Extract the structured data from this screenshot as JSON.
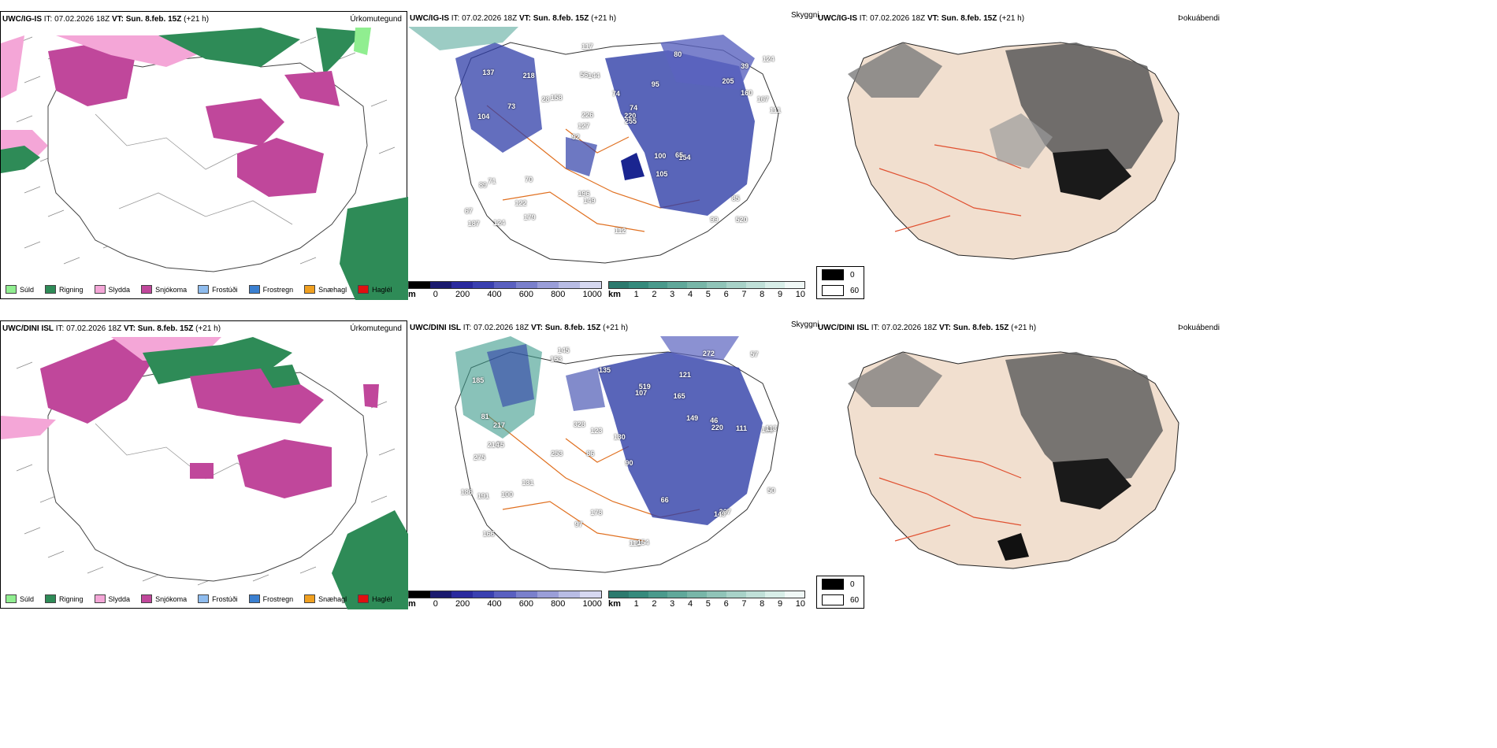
{
  "rows": [
    {
      "model": "UWC/IG-IS",
      "it": "IT: 07.02.2026 18Z",
      "vt_label": "VT:",
      "vt_value": "Sun. 8.feb. 15Z",
      "lead": "(+21 h)"
    },
    {
      "model": "UWC/DINI ISL",
      "it": "IT: 07.02.2026 18Z",
      "vt_label": "VT:",
      "vt_value": "Sun. 8.feb. 15Z",
      "lead": "(+21 h)"
    }
  ],
  "precip_panel": {
    "right_title": "Úrkomutegund",
    "legend": [
      {
        "label": "Súld",
        "color": "#90ee90"
      },
      {
        "label": "Rigning",
        "color": "#2e8b57"
      },
      {
        "label": "Slydda",
        "color": "#f4a6d7"
      },
      {
        "label": "Snjókoma",
        "color": "#c0479b"
      },
      {
        "label": "Frostúði",
        "color": "#8fbcee"
      },
      {
        "label": "Frostregn",
        "color": "#3a7fd0"
      },
      {
        "label": "Snæhagl",
        "color": "#f0a020"
      },
      {
        "label": "Haglél",
        "color": "#e01010"
      }
    ]
  },
  "cloud_panel": {
    "left_title": "Skyggni",
    "m_unit": "m",
    "m_ticks": [
      "0",
      "200",
      "400",
      "600",
      "800",
      "1000"
    ],
    "km_unit": "km",
    "km_ticks": [
      "1",
      "2",
      "3",
      "4",
      "5",
      "6",
      "7",
      "8",
      "9",
      "10"
    ],
    "labels_top": [
      "520",
      "104",
      "39",
      "92",
      "95",
      "124",
      "56",
      "74",
      "71",
      "158",
      "67",
      "122",
      "144",
      "74",
      "154",
      "137",
      "117",
      "111",
      "100",
      "160",
      "127",
      "196",
      "226",
      "218",
      "80",
      "70",
      "99",
      "85",
      "65",
      "112",
      "28",
      "73",
      "105",
      "179",
      "167",
      "220",
      "187",
      "149",
      "255",
      "89",
      "205",
      "124"
    ],
    "labels_bottom": [
      "145",
      "121",
      "151",
      "86",
      "90",
      "75",
      "185",
      "165",
      "275",
      "107",
      "130",
      "166",
      "153",
      "253",
      "112",
      "154",
      "178",
      "272",
      "149",
      "131",
      "217",
      "214",
      "113",
      "111",
      "186",
      "81",
      "123",
      "220",
      "267",
      "191",
      "149",
      "519",
      "100",
      "328",
      "66",
      "50",
      "46",
      "97",
      "57",
      "135"
    ]
  },
  "fog_panel": {
    "right_title": "Þokuábendi",
    "legend": [
      {
        "value": "0",
        "color": "#000000"
      },
      {
        "value": "60",
        "color": "#ffffff"
      }
    ]
  }
}
